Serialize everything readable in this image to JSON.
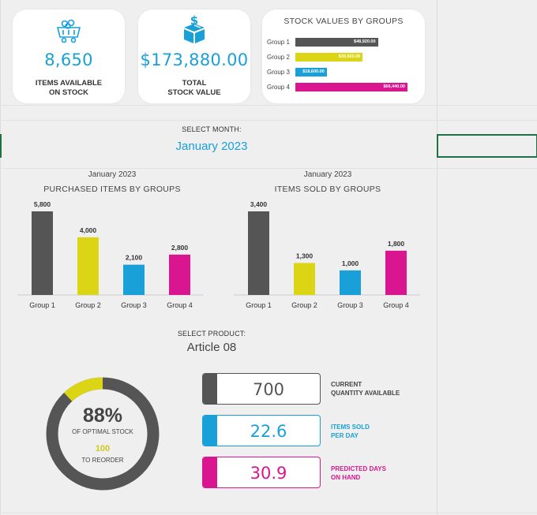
{
  "colors": {
    "group1": "#555555",
    "group2": "#dcd515",
    "group3": "#1aa0d8",
    "group4": "#d9168f",
    "accent": "#1aa0d8"
  },
  "kpis": {
    "items": {
      "value": "8,650",
      "label_line1": "ITEMS AVAILABLE",
      "label_line2": "ON STOCK",
      "icon": "mine-cart-icon"
    },
    "stock_value": {
      "value": "$173,880.00",
      "label_line1": "TOTAL",
      "label_line2": "STOCK VALUE",
      "icon": "money-box-icon"
    }
  },
  "stock_values": {
    "title": "STOCK VALUES BY GROUPS",
    "rows": [
      {
        "label": "Group 1",
        "value": 48920,
        "display": "$48,920.00"
      },
      {
        "label": "Group 2",
        "value": 39920,
        "display": "$39,920.00"
      },
      {
        "label": "Group 3",
        "value": 18600,
        "display": "$18,600.00"
      },
      {
        "label": "Group 4",
        "value": 66440,
        "display": "$66,440.00"
      }
    ]
  },
  "month": {
    "label": "SELECT MONTH:",
    "value": "January 2023"
  },
  "chart_data": [
    {
      "type": "bar",
      "subtitle": "January 2023",
      "title": "PURCHASED ITEMS BY GROUPS",
      "categories": [
        "Group 1",
        "Group 2",
        "Group 3",
        "Group 4"
      ],
      "values": [
        5800,
        4000,
        2100,
        2800
      ],
      "value_labels": [
        "5,800",
        "4,000",
        "2,100",
        "2,800"
      ],
      "ylim": [
        0,
        5800
      ]
    },
    {
      "type": "bar",
      "subtitle": "January 2023",
      "title": "ITEMS SOLD BY GROUPS",
      "categories": [
        "Group 1",
        "Group 2",
        "Group 3",
        "Group 4"
      ],
      "values": [
        3400,
        1300,
        1000,
        1800
      ],
      "value_labels": [
        "3,400",
        "1,300",
        "1,000",
        "1,800"
      ],
      "ylim": [
        0,
        3400
      ]
    }
  ],
  "product": {
    "label": "SELECT PRODUCT:",
    "value": "Article 08"
  },
  "donut": {
    "percent": 88,
    "percent_label": "88%",
    "sub_label": "OF OPTIMAL STOCK",
    "reorder_value": "100",
    "reorder_label": "TO REORDER"
  },
  "metrics": [
    {
      "value": "700",
      "label_line1": "CURRENT",
      "label_line2": "QUANTITY AVAILABLE"
    },
    {
      "value": "22.6",
      "label_line1": "ITEMS SOLD",
      "label_line2": "PER DAY"
    },
    {
      "value": "30.9",
      "label_line1": "PREDICTED DAYS",
      "label_line2": "ON HAND"
    }
  ]
}
